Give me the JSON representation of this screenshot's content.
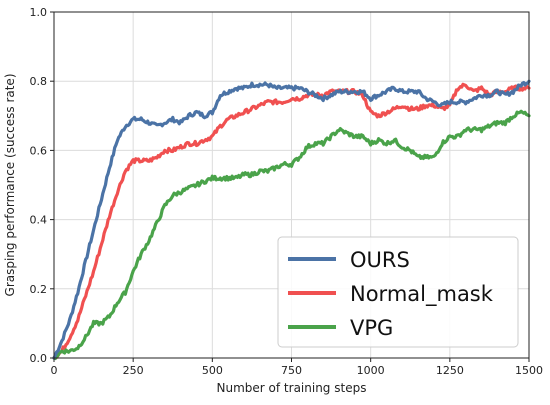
{
  "chart_data": {
    "type": "line",
    "title": "",
    "xlabel": "Number of training steps",
    "ylabel": "Grasping performance (success rate)",
    "xlim": [
      0,
      1500
    ],
    "ylim": [
      0.0,
      1.0
    ],
    "xticks": [
      0,
      250,
      500,
      750,
      1000,
      1250,
      1500
    ],
    "yticks": [
      0.0,
      0.2,
      0.4,
      0.6,
      0.8,
      1.0
    ],
    "xtick_labels": [
      "0",
      "250",
      "500",
      "750",
      "1000",
      "1250",
      "1500"
    ],
    "ytick_labels": [
      "0.0",
      "0.2",
      "0.4",
      "0.6",
      "0.8",
      "1.0"
    ],
    "grid": true,
    "legend_position": "lower-right",
    "series": [
      {
        "name": "OURS",
        "color": "#4b73a6",
        "x": [
          0,
          25,
          50,
          75,
          100,
          125,
          150,
          175,
          200,
          225,
          250,
          275,
          300,
          325,
          350,
          375,
          400,
          425,
          450,
          475,
          500,
          525,
          550,
          575,
          600,
          625,
          650,
          675,
          700,
          725,
          750,
          775,
          800,
          825,
          850,
          875,
          900,
          925,
          950,
          975,
          1000,
          1025,
          1050,
          1075,
          1100,
          1125,
          1150,
          1175,
          1200,
          1225,
          1250,
          1275,
          1300,
          1325,
          1350,
          1375,
          1400,
          1425,
          1450,
          1475,
          1500
        ],
        "values": [
          0.0,
          0.05,
          0.11,
          0.19,
          0.28,
          0.37,
          0.46,
          0.55,
          0.63,
          0.67,
          0.69,
          0.69,
          0.68,
          0.67,
          0.68,
          0.69,
          0.68,
          0.7,
          0.71,
          0.7,
          0.71,
          0.76,
          0.77,
          0.78,
          0.78,
          0.79,
          0.79,
          0.79,
          0.78,
          0.78,
          0.78,
          0.78,
          0.77,
          0.76,
          0.75,
          0.76,
          0.77,
          0.77,
          0.77,
          0.77,
          0.75,
          0.76,
          0.77,
          0.78,
          0.77,
          0.77,
          0.77,
          0.75,
          0.74,
          0.73,
          0.74,
          0.74,
          0.74,
          0.75,
          0.76,
          0.76,
          0.77,
          0.76,
          0.77,
          0.79,
          0.8
        ]
      },
      {
        "name": "Normal_mask",
        "color": "#f05050",
        "x": [
          0,
          25,
          50,
          75,
          100,
          125,
          150,
          175,
          200,
          225,
          250,
          275,
          300,
          325,
          350,
          375,
          400,
          425,
          450,
          475,
          500,
          525,
          550,
          575,
          600,
          625,
          650,
          675,
          700,
          725,
          750,
          775,
          800,
          825,
          850,
          875,
          900,
          925,
          950,
          975,
          1000,
          1025,
          1050,
          1075,
          1100,
          1125,
          1150,
          1175,
          1200,
          1225,
          1250,
          1275,
          1300,
          1325,
          1350,
          1375,
          1400,
          1425,
          1450,
          1475,
          1500
        ],
        "values": [
          0.0,
          0.02,
          0.06,
          0.11,
          0.18,
          0.25,
          0.33,
          0.41,
          0.48,
          0.54,
          0.57,
          0.57,
          0.57,
          0.58,
          0.6,
          0.6,
          0.61,
          0.62,
          0.62,
          0.63,
          0.64,
          0.67,
          0.69,
          0.7,
          0.71,
          0.72,
          0.73,
          0.74,
          0.74,
          0.74,
          0.75,
          0.75,
          0.76,
          0.76,
          0.76,
          0.77,
          0.77,
          0.77,
          0.77,
          0.76,
          0.71,
          0.7,
          0.71,
          0.72,
          0.73,
          0.72,
          0.72,
          0.73,
          0.73,
          0.72,
          0.73,
          0.78,
          0.79,
          0.77,
          0.78,
          0.76,
          0.77,
          0.77,
          0.78,
          0.78,
          0.78
        ]
      },
      {
        "name": "VPG",
        "color": "#4aa34a",
        "x": [
          0,
          25,
          50,
          75,
          100,
          125,
          150,
          175,
          200,
          225,
          250,
          275,
          300,
          325,
          350,
          375,
          400,
          425,
          450,
          475,
          500,
          525,
          550,
          575,
          600,
          625,
          650,
          675,
          700,
          725,
          750,
          775,
          800,
          825,
          850,
          875,
          900,
          925,
          950,
          975,
          1000,
          1025,
          1050,
          1075,
          1100,
          1125,
          1150,
          1175,
          1200,
          1225,
          1250,
          1275,
          1300,
          1325,
          1350,
          1375,
          1400,
          1425,
          1450,
          1475,
          1500
        ],
        "values": [
          0.0,
          0.02,
          0.02,
          0.03,
          0.06,
          0.1,
          0.1,
          0.12,
          0.16,
          0.19,
          0.25,
          0.3,
          0.34,
          0.39,
          0.44,
          0.47,
          0.48,
          0.49,
          0.5,
          0.51,
          0.52,
          0.52,
          0.52,
          0.52,
          0.53,
          0.53,
          0.54,
          0.54,
          0.55,
          0.56,
          0.56,
          0.58,
          0.61,
          0.62,
          0.62,
          0.64,
          0.66,
          0.65,
          0.64,
          0.64,
          0.62,
          0.63,
          0.62,
          0.63,
          0.61,
          0.6,
          0.58,
          0.58,
          0.58,
          0.62,
          0.64,
          0.64,
          0.66,
          0.66,
          0.66,
          0.67,
          0.68,
          0.68,
          0.7,
          0.71,
          0.7
        ]
      }
    ]
  }
}
